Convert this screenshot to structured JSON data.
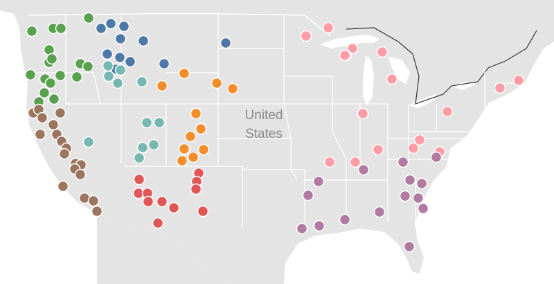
{
  "map": {
    "country_label_line1": "United",
    "country_label_line2": "States",
    "colors": {
      "ocean": "#ffffff",
      "land": "#e4e4e4",
      "state_border": "#ffffff",
      "point_stroke": "#ffffff"
    },
    "regions": [
      {
        "name": "green",
        "color": "#59a14f"
      },
      {
        "name": "blue",
        "color": "#4e79a7"
      },
      {
        "name": "teal",
        "color": "#76b7b2"
      },
      {
        "name": "orange",
        "color": "#f28e2b"
      },
      {
        "name": "brown",
        "color": "#9c755f"
      },
      {
        "name": "red",
        "color": "#e15759"
      },
      {
        "name": "pink",
        "color": "#ff9da7"
      },
      {
        "name": "purple",
        "color": "#b07aa1"
      }
    ]
  }
}
